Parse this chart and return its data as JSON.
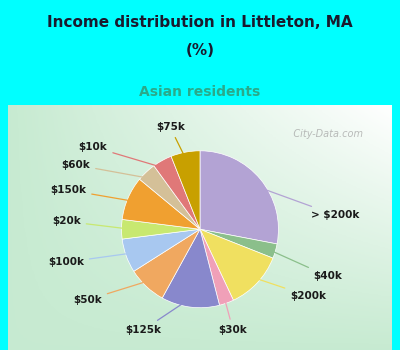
{
  "title_line1": "Income distribution in Littleton, MA",
  "title_line2": "(%)",
  "subtitle": "Asian residents",
  "title_color": "#1a1a2e",
  "subtitle_color": "#2aaa8a",
  "bg_cyan": "#00ffff",
  "bg_chart_gradient_tl": [
    0.85,
    1.0,
    0.92
  ],
  "bg_chart_gradient_br": [
    0.75,
    0.95,
    0.85
  ],
  "labels": [
    "> $200k",
    "$40k",
    "$200k",
    "$30k",
    "$125k",
    "$50k",
    "$100k",
    "$20k",
    "$150k",
    "$60k",
    "$10k",
    "$75k"
  ],
  "values": [
    28,
    3,
    12,
    3,
    12,
    8,
    7,
    4,
    9,
    4,
    4,
    6
  ],
  "colors": [
    "#b3a3d4",
    "#8bbf8b",
    "#f0e060",
    "#f0a0b8",
    "#8888cc",
    "#f0a860",
    "#a8c8f0",
    "#c8e870",
    "#f0a030",
    "#d4c098",
    "#e07878",
    "#c8a000"
  ],
  "startangle": 90,
  "label_fontsize": 7.5,
  "watermark": "   City-Data.com"
}
